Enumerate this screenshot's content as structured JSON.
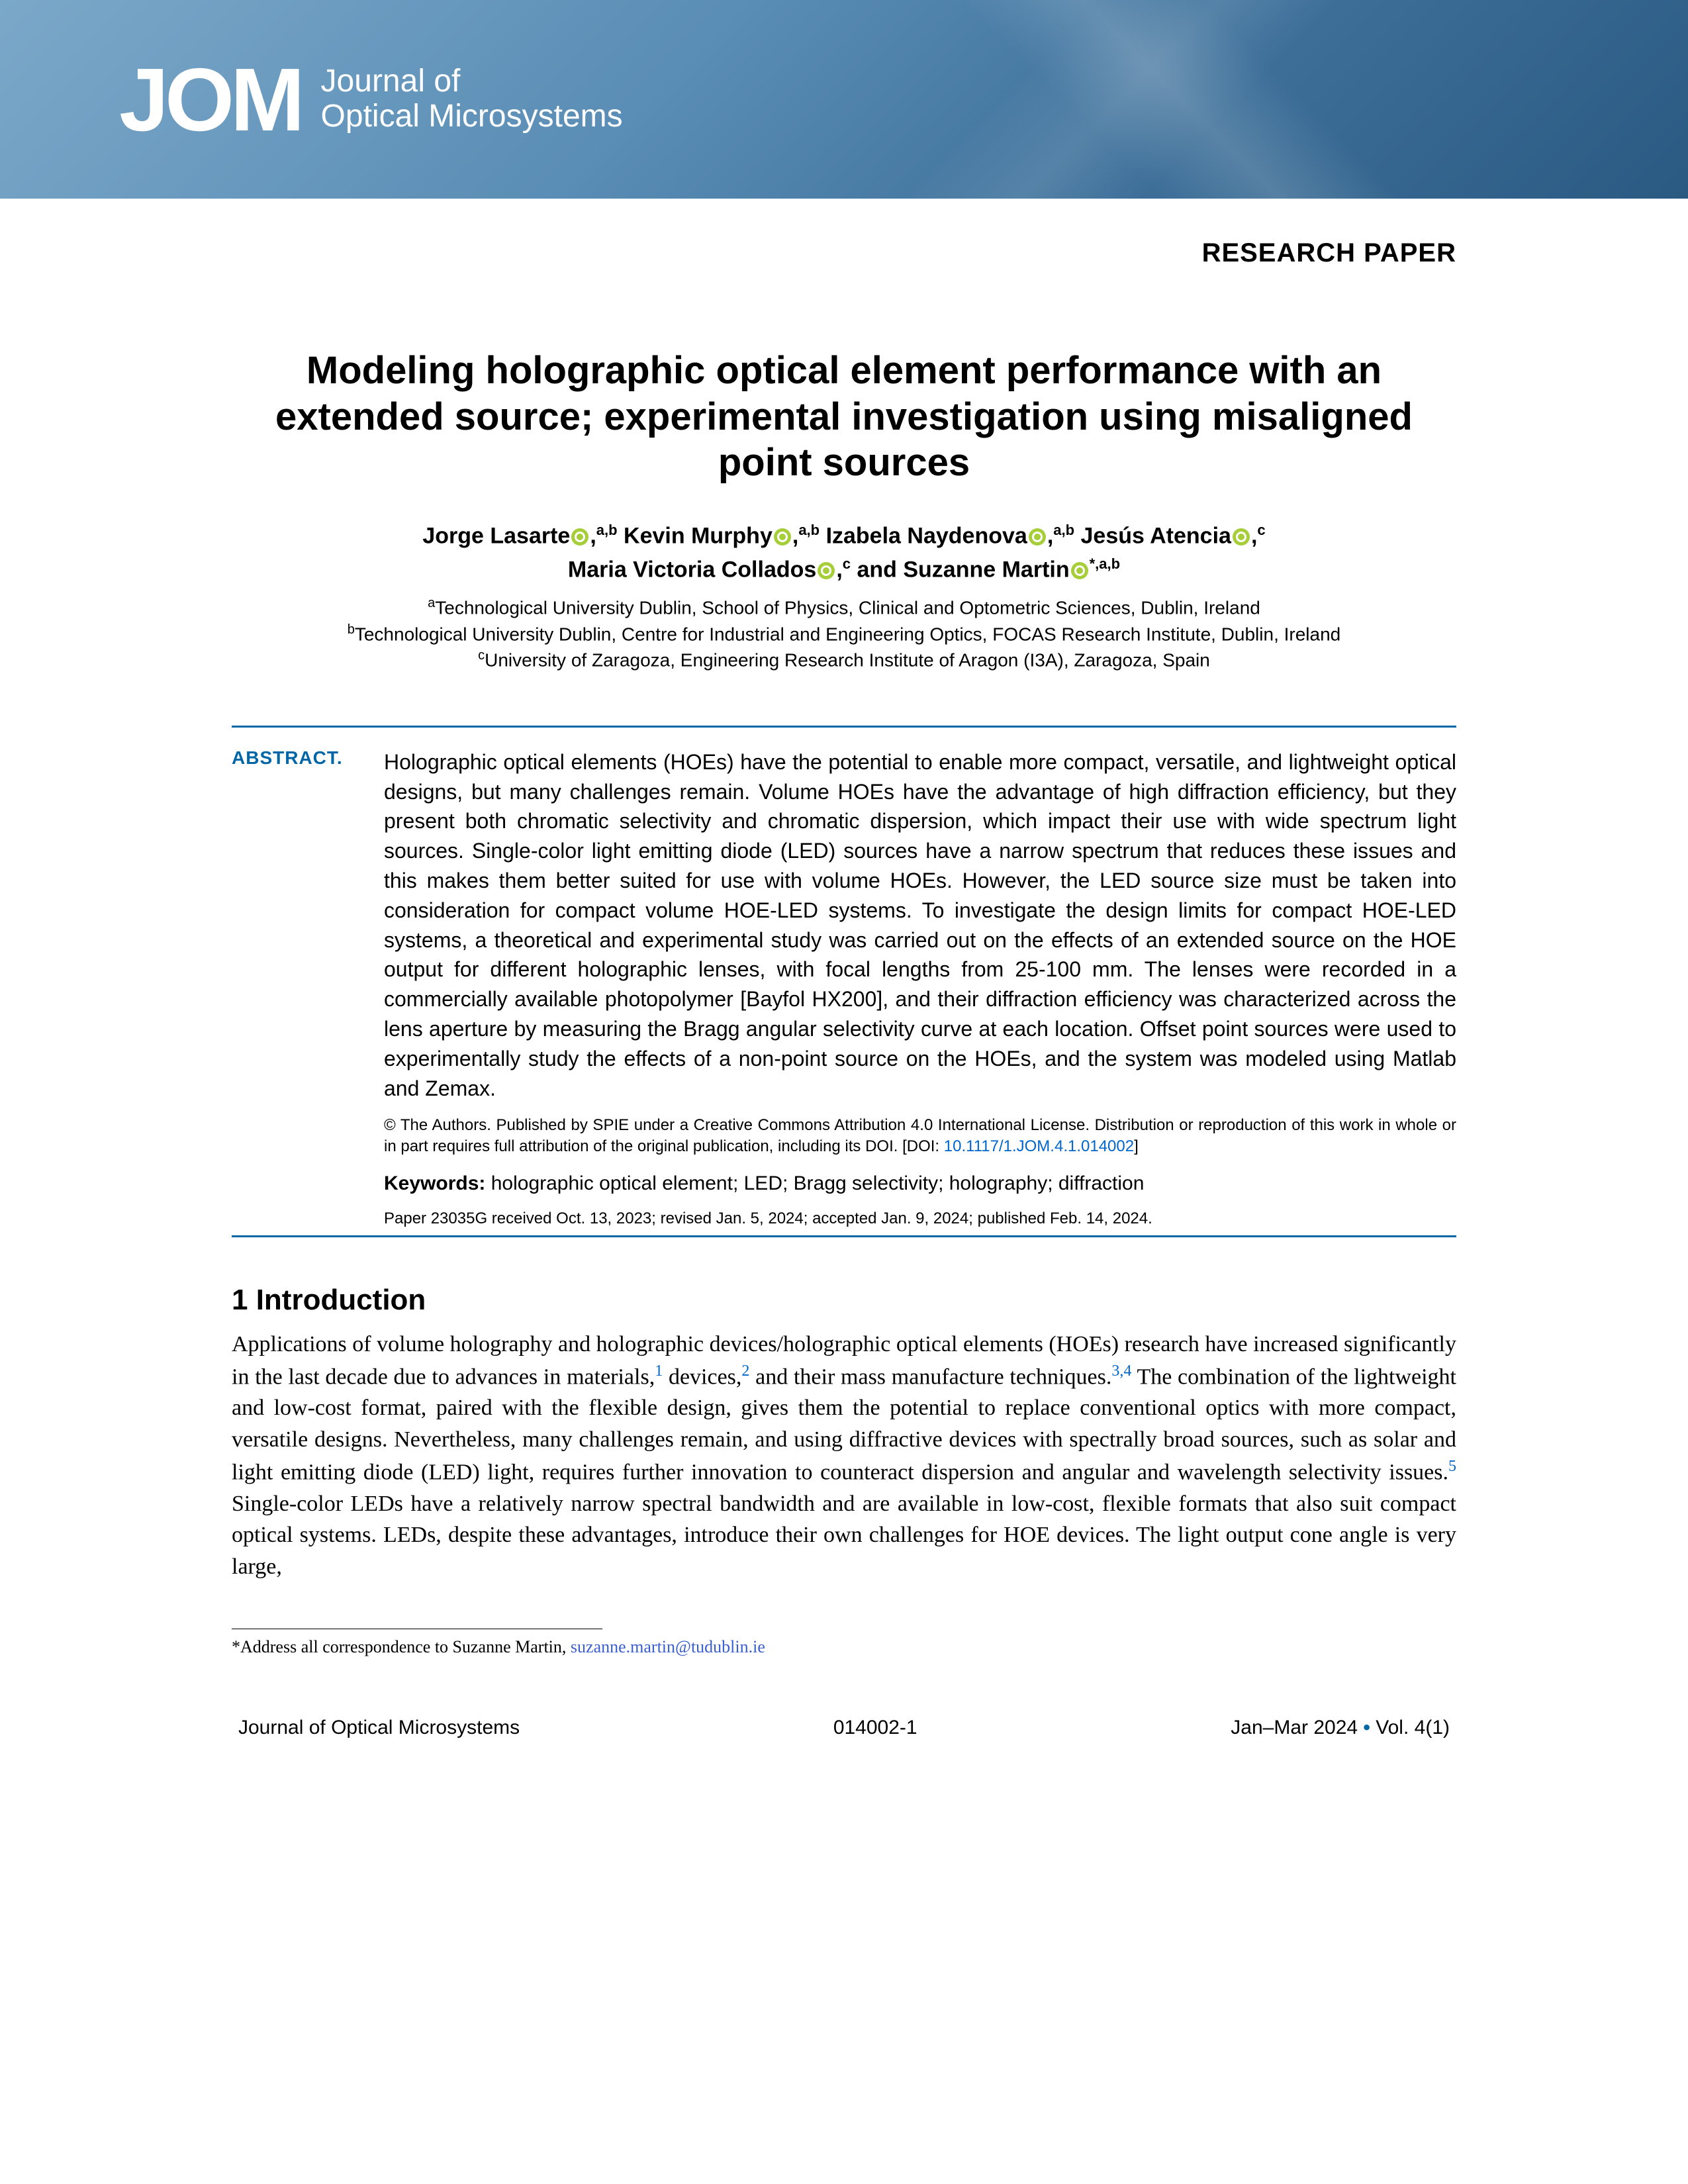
{
  "banner": {
    "logo_abbrev": "JOM",
    "logo_line1": "Journal of",
    "logo_line2": "Optical Microsystems",
    "bg_gradient_start": "#7ba8c9",
    "bg_gradient_end": "#2a5a82"
  },
  "paper_type": "RESEARCH PAPER",
  "title": "Modeling holographic optical element performance with an extended source; experimental investigation using misaligned point sources",
  "authors": [
    {
      "name": "Jorge Lasarte",
      "orcid": true,
      "affil": "a,b"
    },
    {
      "name": "Kevin Murphy",
      "orcid": true,
      "affil": "a,b"
    },
    {
      "name": "Izabela Naydenova",
      "orcid": true,
      "affil": "a,b"
    },
    {
      "name": "Jesús Atencia",
      "orcid": true,
      "affil": "c"
    },
    {
      "name": "Maria Victoria Collados",
      "orcid": true,
      "affil": "c"
    },
    {
      "name": "Suzanne Martin",
      "orcid": true,
      "affil": "*,a,b",
      "corresponding": true
    }
  ],
  "affiliations": {
    "a": "Technological University Dublin, School of Physics, Clinical and Optometric Sciences, Dublin, Ireland",
    "b": "Technological University Dublin, Centre for Industrial and Engineering Optics, FOCAS Research Institute, Dublin, Ireland",
    "c": "University of Zaragoza, Engineering Research Institute of Aragon (I3A), Zaragoza, Spain"
  },
  "abstract_label": "ABSTRACT.",
  "abstract": "Holographic optical elements (HOEs) have the potential to enable more compact, versatile, and lightweight optical designs, but many challenges remain. Volume HOEs have the advantage of high diffraction efficiency, but they present both chromatic selectivity and chromatic dispersion, which impact their use with wide spectrum light sources. Single-color light emitting diode (LED) sources have a narrow spectrum that reduces these issues and this makes them better suited for use with volume HOEs. However, the LED source size must be taken into consideration for compact volume HOE-LED systems. To investigate the design limits for compact HOE-LED systems, a theoretical and experimental study was carried out on the effects of an extended source on the HOE output for different holographic lenses, with focal lengths from 25-100 mm. The lenses were recorded in a commercially available photopolymer [Bayfol HX200], and their diffraction efficiency was characterized across the lens aperture by measuring the Bragg angular selectivity curve at each location. Offset point sources were used to experimentally study the effects of a non-point source on the HOEs, and the system was modeled using Matlab and Zemax.",
  "license": "© The Authors. Published by SPIE under a Creative Commons Attribution 4.0 International License. Distribution or reproduction of this work in whole or in part requires full attribution of the original publication, including its DOI. [DOI: ",
  "doi": "10.1117/1.JOM.4.1.014002",
  "license_close": "]",
  "keywords_label": "Keywords:",
  "keywords": "holographic optical element; LED; Bragg selectivity; holography; diffraction",
  "paper_info": "Paper 23035G received Oct. 13, 2023; revised Jan. 5, 2024; accepted Jan. 9, 2024; published Feb. 14, 2024.",
  "section1_heading": "1 Introduction",
  "intro_pre": "Applications of volume holography and holographic devices/holographic optical elements (HOEs) research have increased significantly in the last decade due to advances in materials,",
  "intro_ref1": "1",
  "intro_mid1": " devices,",
  "intro_ref2": "2",
  "intro_mid2": " and their mass manufacture techniques.",
  "intro_ref34": "3,4",
  "intro_mid3": " The combination of the lightweight and low-cost format, paired with the flexible design, gives them the potential to replace conventional optics with more compact, versatile designs. Nevertheless, many challenges remain, and using diffractive devices with spectrally broad sources, such as solar and light emitting diode (LED) light, requires further innovation to counteract dispersion and angular and wavelength selectivity issues.",
  "intro_ref5": "5",
  "intro_post": " Single-color LEDs have a relatively narrow spectral bandwidth and are available in low-cost, flexible formats that also suit compact optical systems. LEDs, despite these advantages, introduce their own challenges for HOE devices. The light output cone angle is very large,",
  "footnote_text": "*Address all correspondence to Suzanne Martin, ",
  "footnote_email": "suzanne.martin@tudublin.ie",
  "footer": {
    "journal": "Journal of Optical Microsystems",
    "pageid": "014002-1",
    "issue_text": "Jan–Mar 2024",
    "vol_text": "Vol. 4(1)"
  },
  "colors": {
    "accent": "#0066a6",
    "link": "#0066cc",
    "orcid": "#a6ce39"
  }
}
